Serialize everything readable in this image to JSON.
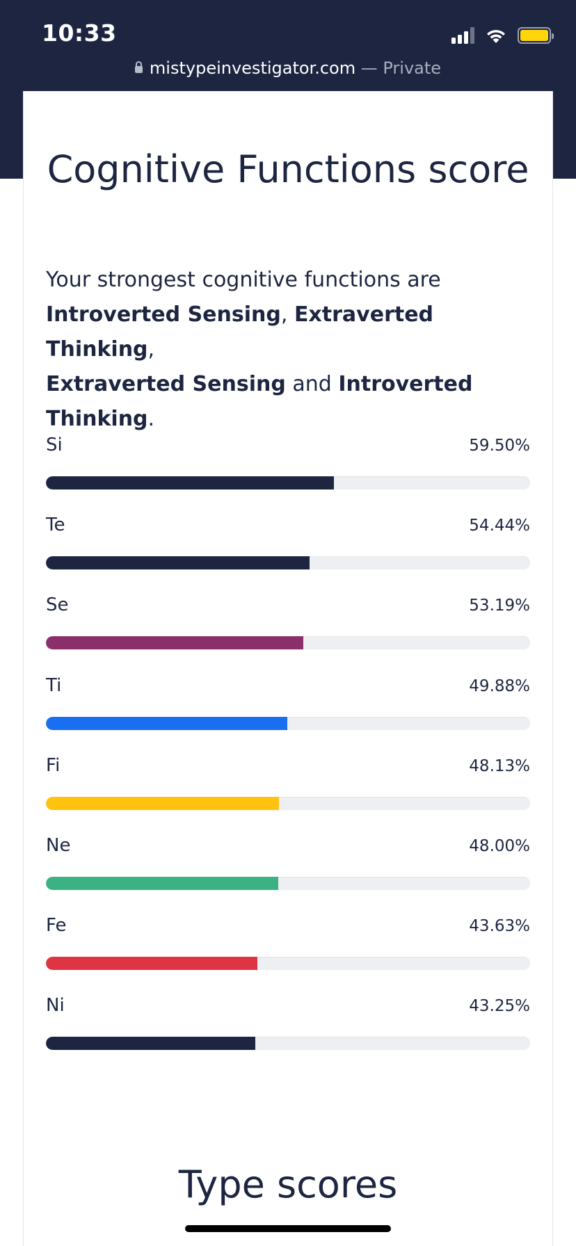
{
  "status_bar": {
    "time": "10:33"
  },
  "browser": {
    "domain": "mistypeinvestigator.com",
    "suffix": "— Private"
  },
  "page": {
    "title": "Cognitive Functions score",
    "intro": {
      "prefix": "Your strongest cognitive functions are",
      "f1": "Introverted Sensing",
      "sep1": ", ",
      "f2": "Extraverted Thinking",
      "sep2": ",",
      "f3": "Extraverted Sensing",
      "and": " and ",
      "f4": "Introverted Thinking",
      "end": "."
    },
    "section2_title": "Type scores"
  },
  "chart_data": {
    "type": "bar",
    "orientation": "horizontal",
    "categories": [
      "Si",
      "Te",
      "Se",
      "Ti",
      "Fi",
      "Ne",
      "Fe",
      "Ni"
    ],
    "values": [
      59.5,
      54.44,
      53.19,
      49.88,
      48.13,
      48.0,
      43.63,
      43.25
    ],
    "value_labels": [
      "59.50%",
      "54.44%",
      "53.19%",
      "49.88%",
      "48.13%",
      "48.00%",
      "43.63%",
      "43.25%"
    ],
    "colors": [
      "#1d2541",
      "#1d2541",
      "#8b2f6b",
      "#1a6ff0",
      "#ffc20e",
      "#3cb284",
      "#de3545",
      "#1d2541"
    ],
    "xlim": [
      0,
      100
    ],
    "track_color": "#eeeff2"
  }
}
